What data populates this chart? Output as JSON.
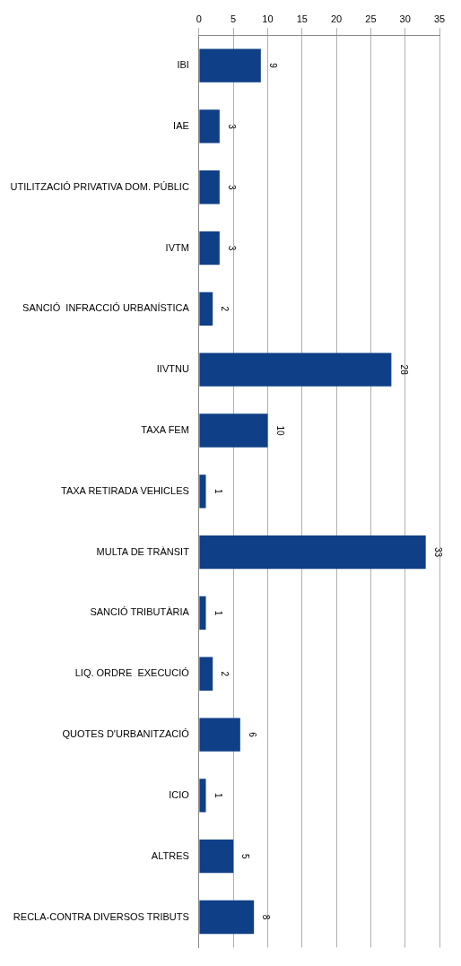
{
  "chart_data": {
    "type": "bar",
    "orientation": "horizontal",
    "categories": [
      "IBI",
      "IAE",
      "UTILITZACIÓ PRIVATIVA DOM. PÚBLIC",
      "IVTM",
      "SANCIÓ  INFRACCIÓ URBANÍSTICA",
      "IIVTNU",
      "TAXA FEM",
      "TAXA RETIRADA VEHICLES",
      "MULTA DE TRÀNSIT",
      "SANCIÓ TRIBUTÀRIA",
      "LIQ. ORDRE  EXECUCIÓ",
      "QUOTES D'URBANITZACIÓ",
      "ICIO",
      "ALTRES",
      "RECLA-CONTRA DIVERSOS TRIBUTS"
    ],
    "values": [
      9,
      3,
      3,
      3,
      2,
      28,
      10,
      1,
      33,
      1,
      2,
      6,
      1,
      5,
      8
    ],
    "color": "#0f3f86",
    "xlim": [
      0,
      35
    ],
    "xticks": [
      0,
      5,
      10,
      15,
      20,
      25,
      30,
      35
    ],
    "grid": "x",
    "data_labels": true,
    "legend": false
  }
}
